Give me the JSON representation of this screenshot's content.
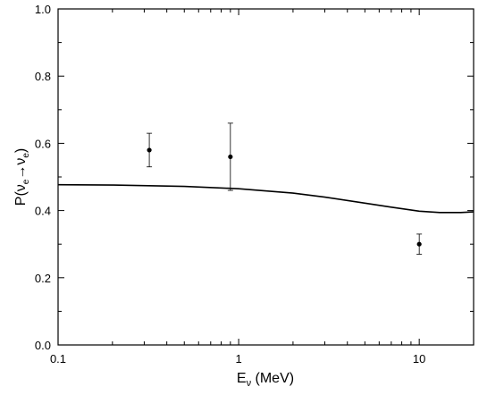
{
  "chart_data": {
    "type": "scatter",
    "xlabel": {
      "main": "E",
      "sub": "ν",
      "rest": " (MeV)"
    },
    "ylabel": {
      "p": "P(",
      "nu1": "ν",
      "sub1": "e",
      "arrow": "→",
      "nu2": "ν",
      "sub2": "e",
      "close": ")"
    },
    "xscale": "log",
    "xlim": [
      0.1,
      20
    ],
    "ylim": [
      0.0,
      1.0
    ],
    "xticks": [
      {
        "value": 0.1,
        "label": "0.1"
      },
      {
        "value": 1,
        "label": "1"
      },
      {
        "value": 10,
        "label": "10"
      }
    ],
    "yticks": [
      {
        "value": 0.0,
        "label": "0.0"
      },
      {
        "value": 0.2,
        "label": "0.2"
      },
      {
        "value": 0.4,
        "label": "0.4"
      },
      {
        "value": 0.6,
        "label": "0.6"
      },
      {
        "value": 0.8,
        "label": "0.8"
      },
      {
        "value": 1.0,
        "label": "1.0"
      }
    ],
    "points": [
      {
        "x": 0.32,
        "y": 0.58,
        "err_low": 0.05,
        "err_high": 0.05
      },
      {
        "x": 0.9,
        "y": 0.56,
        "err_low": 0.1,
        "err_high": 0.1
      },
      {
        "x": 10,
        "y": 0.3,
        "err_low": 0.03,
        "err_high": 0.03
      }
    ],
    "curve": {
      "x": [
        0.1,
        0.2,
        0.5,
        1,
        2,
        3,
        5,
        7,
        10,
        13,
        17,
        20
      ],
      "y": [
        0.477,
        0.476,
        0.472,
        0.465,
        0.452,
        0.44,
        0.422,
        0.41,
        0.398,
        0.394,
        0.394,
        0.396
      ]
    },
    "colors": {
      "line": "#000000",
      "points": "#000000",
      "axes": "#000000"
    }
  }
}
